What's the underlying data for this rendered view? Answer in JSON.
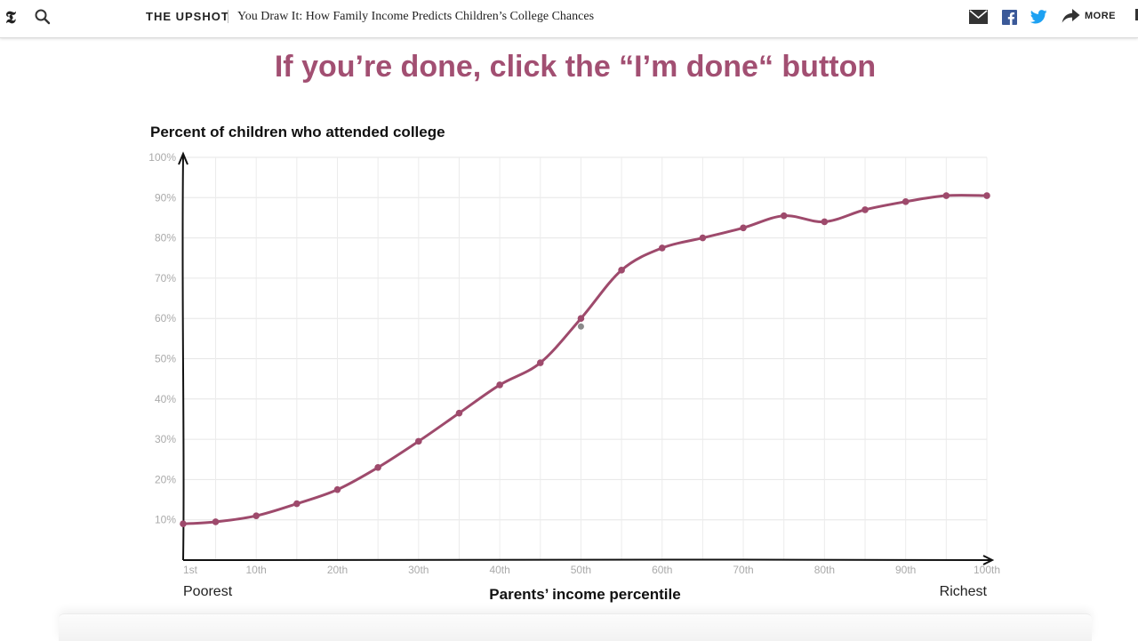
{
  "header": {
    "section": "THE UPSHOT",
    "headline": "You Draw It: How Family Income Predicts Children’s College Chances",
    "more_label": "MORE",
    "logo_glyph": "𝕿",
    "icons": [
      "search-icon",
      "mail-icon",
      "facebook-icon",
      "twitter-icon",
      "share-arrow-icon"
    ]
  },
  "prompt": "If you’re done, click the “I’m done“ button",
  "chart_data": {
    "type": "line",
    "ylabel": "Percent of children who attended college",
    "xlabel": "Parents’ income percentile",
    "x_end_labels": {
      "left": "Poorest",
      "right": "Richest"
    },
    "x_ticks": [
      {
        "value": 1,
        "label": "1st"
      },
      {
        "value": 10,
        "label": "10th"
      },
      {
        "value": 20,
        "label": "20th"
      },
      {
        "value": 30,
        "label": "30th"
      },
      {
        "value": 40,
        "label": "40th"
      },
      {
        "value": 50,
        "label": "50th"
      },
      {
        "value": 60,
        "label": "60th"
      },
      {
        "value": 70,
        "label": "70th"
      },
      {
        "value": 80,
        "label": "80th"
      },
      {
        "value": 90,
        "label": "90th"
      },
      {
        "value": 100,
        "label": "100th"
      }
    ],
    "y_ticks": [
      {
        "value": 10,
        "label": "10%"
      },
      {
        "value": 20,
        "label": "20%"
      },
      {
        "value": 30,
        "label": "30%"
      },
      {
        "value": 40,
        "label": "40%"
      },
      {
        "value": 50,
        "label": "50%"
      },
      {
        "value": 60,
        "label": "60%"
      },
      {
        "value": 70,
        "label": "70%"
      },
      {
        "value": 80,
        "label": "80%"
      },
      {
        "value": 90,
        "label": "90%"
      },
      {
        "value": 100,
        "label": "100%"
      }
    ],
    "xlim": [
      1,
      100
    ],
    "ylim": [
      0,
      100
    ],
    "grid": true,
    "series": [
      {
        "color": "#9e4a6c",
        "points": [
          [
            1,
            9
          ],
          [
            5,
            9.5
          ],
          [
            10,
            11
          ],
          [
            15,
            14
          ],
          [
            20,
            17.5
          ],
          [
            25,
            23
          ],
          [
            30,
            29.5
          ],
          [
            35,
            36.5
          ],
          [
            40,
            43.5
          ],
          [
            45,
            49
          ],
          [
            50,
            60
          ],
          [
            55,
            72
          ],
          [
            60,
            77.5
          ],
          [
            65,
            80
          ],
          [
            70,
            82.5
          ],
          [
            75,
            85.5
          ],
          [
            80,
            84
          ],
          [
            85,
            87
          ],
          [
            90,
            89
          ],
          [
            95,
            90.5
          ],
          [
            100,
            90.5
          ]
        ]
      }
    ],
    "annotations": [
      {
        "x": 50,
        "y": 58,
        "color": "#8a8a8a"
      }
    ]
  }
}
